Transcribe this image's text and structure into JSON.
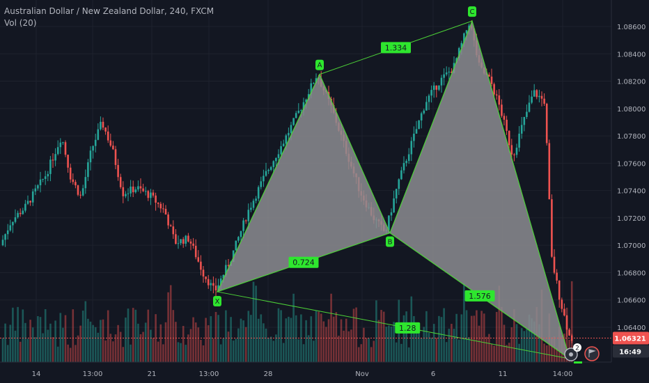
{
  "legend": {
    "title": "Australian Dollar / New Zealand Dollar, 240, FXCM",
    "volume": "Vol (20)"
  },
  "colors": {
    "background": "#131722",
    "grid": "#1e222d",
    "up": "#26a69a",
    "down": "#ef5350",
    "pattern_line": "#4cd137",
    "pattern_fill": "#8c8c90",
    "label_bg": "#2ee62e",
    "price_tag": "#ef5350"
  },
  "price_axis": {
    "ticks": [
      "1.08600",
      "1.08400",
      "1.08200",
      "1.08000",
      "1.07800",
      "1.07600",
      "1.07400",
      "1.07200",
      "1.07000",
      "1.06800",
      "1.06600",
      "1.06400"
    ],
    "current_price": "1.06321",
    "countdown": "16:49"
  },
  "time_axis": {
    "ticks": [
      "14",
      "13:00",
      "21",
      "13:00",
      "28",
      "Nov",
      "6",
      "11",
      "14:00"
    ]
  },
  "chart_data": {
    "type": "candlestick",
    "symbol": "AUDNZD",
    "interval": "240",
    "source": "FXCM",
    "ylim": [
      1.0612,
      1.0872
    ],
    "harmonic_pattern": {
      "points": [
        {
          "label": "X",
          "price": 1.0666
        },
        {
          "label": "A",
          "price": 1.0825
        },
        {
          "label": "B",
          "price": 1.0709
        },
        {
          "label": "C",
          "price": 1.0864
        },
        {
          "label": "D",
          "price": 1.0617
        }
      ],
      "ratios": [
        {
          "value": "1.334",
          "between": "A-C"
        },
        {
          "value": "0.724",
          "between": "X-B"
        },
        {
          "value": "1.576",
          "between": "B-D"
        },
        {
          "value": "1.28",
          "between": "X-D"
        }
      ]
    },
    "last_price": 1.06321
  },
  "badges": {
    "count": "2"
  }
}
